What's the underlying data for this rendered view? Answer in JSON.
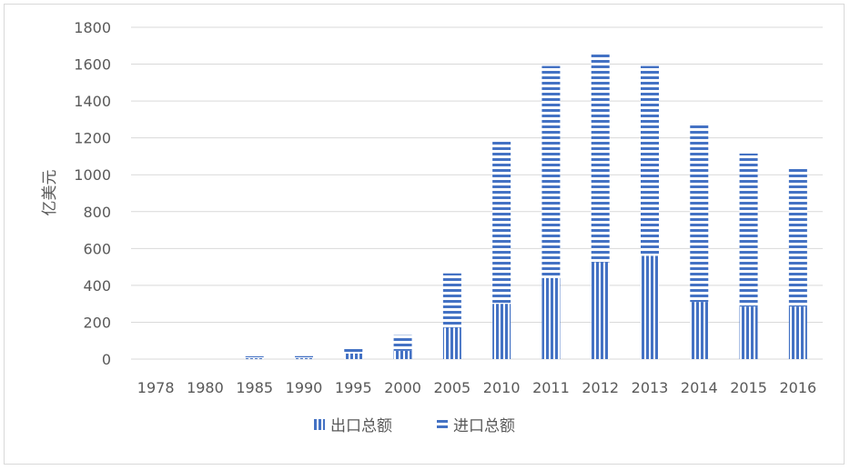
{
  "chart_data": {
    "type": "bar",
    "stacked": true,
    "categories": [
      "1978",
      "1980",
      "1985",
      "1990",
      "1995",
      "2000",
      "2005",
      "2010",
      "2011",
      "2012",
      "2013",
      "2014",
      "2015",
      "2016"
    ],
    "series": [
      {
        "name": "出口总额",
        "values": [
          0,
          0,
          5,
          6,
          30,
          45,
          170,
          300,
          440,
          525,
          560,
          310,
          285,
          285
        ],
        "pattern": "vertical-stripes",
        "color": "#4472c4"
      },
      {
        "name": "进口总额",
        "values": [
          0,
          0,
          10,
          10,
          25,
          85,
          295,
          890,
          1150,
          1130,
          1030,
          970,
          830,
          760
        ],
        "pattern": "horizontal-stripes",
        "color": "#4472c4"
      }
    ],
    "ylabel": "亿美元",
    "xlabel": "",
    "title": "",
    "ylim": [
      0,
      1800
    ],
    "yticks": [
      0,
      200,
      400,
      600,
      800,
      1000,
      1200,
      1400,
      1600,
      1800
    ],
    "grid": true,
    "legend": "bottom"
  }
}
